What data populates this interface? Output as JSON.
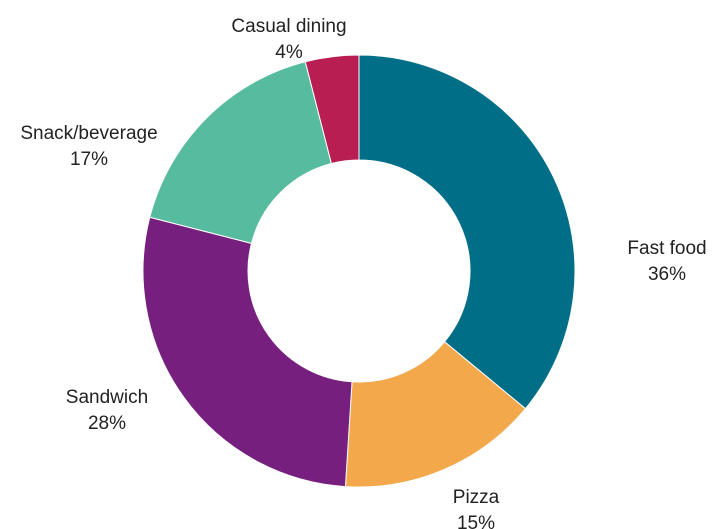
{
  "chart_data": {
    "type": "pie",
    "donut": true,
    "title": "",
    "legend": "none",
    "slices": [
      {
        "label": "Fast food",
        "value": 36,
        "value_label": "36%",
        "color": "#006E87"
      },
      {
        "label": "Pizza",
        "value": 15,
        "value_label": "15%",
        "color": "#F2A84B"
      },
      {
        "label": "Sandwich",
        "value": 28,
        "value_label": "28%",
        "color": "#771F7E"
      },
      {
        "label": "Snack/beverage",
        "value": 17,
        "value_label": "17%",
        "color": "#57BC9F"
      },
      {
        "label": "Casual dining",
        "value": 4,
        "value_label": "4%",
        "color": "#B81E51"
      }
    ]
  }
}
